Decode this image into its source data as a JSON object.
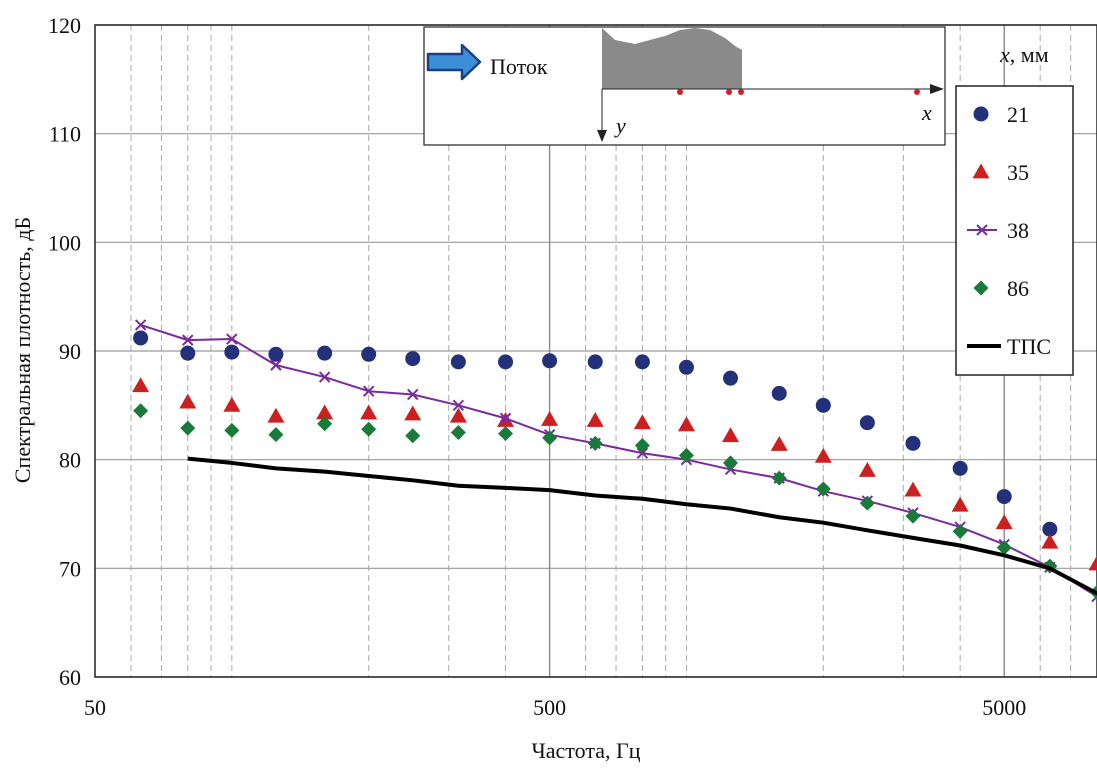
{
  "chart_data": {
    "type": "scatter",
    "xlabel": "Частота, Гц",
    "ylabel": "Спектральная плотность, дБ",
    "x_scale": "log",
    "xlim": [
      50,
      8000
    ],
    "ylim": [
      60,
      120
    ],
    "x_ticks": [
      50,
      500,
      5000
    ],
    "y_ticks": [
      60,
      70,
      80,
      90,
      100,
      110,
      120
    ],
    "grid": true,
    "legend_title": "мм",
    "legend_title_var": "x",
    "legend_placement": "right",
    "series": [
      {
        "name": "21",
        "marker": "circle",
        "color": "#23307a",
        "x": [
          63,
          80,
          100,
          125,
          160,
          200,
          250,
          315,
          400,
          500,
          630,
          800,
          1000,
          1250,
          1600,
          2000,
          2500,
          3150,
          4000,
          5000,
          6300
        ],
        "y": [
          91.2,
          89.8,
          89.9,
          89.7,
          89.8,
          89.7,
          89.3,
          89.0,
          89.0,
          89.1,
          89.0,
          89.0,
          88.5,
          87.5,
          86.1,
          85.0,
          83.4,
          81.5,
          79.2,
          76.6,
          73.6
        ]
      },
      {
        "name": "35",
        "marker": "triangle",
        "color": "#cc2020",
        "x": [
          63,
          80,
          100,
          125,
          160,
          200,
          250,
          315,
          400,
          500,
          630,
          800,
          1000,
          1250,
          1600,
          2000,
          2500,
          3150,
          4000,
          5000,
          6300,
          8000
        ],
        "y": [
          86.8,
          85.3,
          85.0,
          84.0,
          84.3,
          84.3,
          84.2,
          84.0,
          83.6,
          83.7,
          83.6,
          83.4,
          83.2,
          82.2,
          81.4,
          80.3,
          79.0,
          77.2,
          75.8,
          74.2,
          72.4,
          70.4
        ]
      },
      {
        "name": "38",
        "marker": "cross-line",
        "color": "#7a2a9e",
        "x": [
          63,
          80,
          100,
          125,
          160,
          200,
          250,
          315,
          400,
          500,
          630,
          800,
          1000,
          1250,
          1600,
          2000,
          2500,
          3150,
          4000,
          5000,
          6300,
          8000
        ],
        "y": [
          92.4,
          91.0,
          91.1,
          88.7,
          87.6,
          86.3,
          86.0,
          85.0,
          83.8,
          82.3,
          81.5,
          80.6,
          80.0,
          79.1,
          78.3,
          77.1,
          76.2,
          75.1,
          73.8,
          72.2,
          70.1,
          67.4
        ]
      },
      {
        "name": "86",
        "marker": "diamond",
        "color": "#1a7a3a",
        "x": [
          63,
          80,
          100,
          125,
          160,
          200,
          250,
          315,
          400,
          500,
          630,
          800,
          1000,
          1250,
          1600,
          2000,
          2500,
          3150,
          4000,
          5000,
          6300,
          8000
        ],
        "y": [
          84.5,
          82.9,
          82.7,
          82.3,
          83.3,
          82.8,
          82.2,
          82.5,
          82.4,
          82.0,
          81.5,
          81.3,
          80.4,
          79.7,
          78.3,
          77.3,
          76.0,
          74.8,
          73.4,
          71.9,
          70.2,
          67.8
        ]
      },
      {
        "name": "ТПС",
        "marker": "line",
        "color": "#000000",
        "x": [
          80,
          100,
          125,
          160,
          200,
          250,
          315,
          400,
          500,
          630,
          800,
          1000,
          1250,
          1600,
          2000,
          2500,
          3150,
          4000,
          5000,
          6300,
          8000,
          9500
        ],
        "y": [
          80.1,
          79.7,
          79.2,
          78.9,
          78.5,
          78.1,
          77.6,
          77.4,
          77.2,
          76.7,
          76.4,
          75.9,
          75.5,
          74.7,
          74.2,
          73.5,
          72.8,
          72.1,
          71.2,
          70.0,
          67.7,
          65.7
        ]
      }
    ],
    "inset": {
      "flow_label": "Поток",
      "x_axis_label": "x",
      "y_axis_label": "y"
    }
  }
}
